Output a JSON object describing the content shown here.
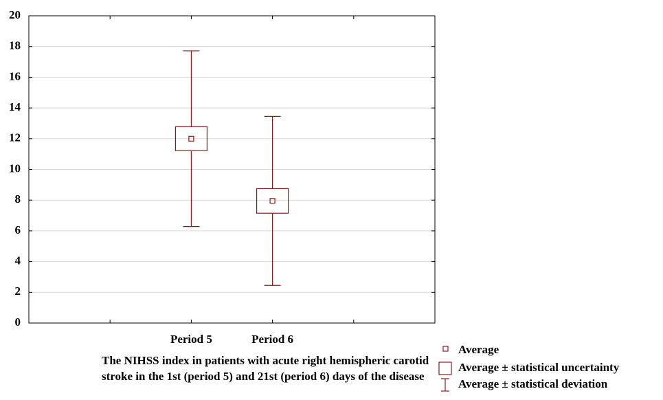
{
  "chart_data": {
    "type": "box",
    "caption": "The NIHSS index in patients with acute right hemispheric carotid stroke in the 1st (period 5) and 21st (period 6) days of the disease",
    "categories": [
      null,
      "Period 5",
      "Period 6",
      null
    ],
    "mean": [
      null,
      12,
      7.95,
      null
    ],
    "uncertainty": [
      null,
      0.78,
      0.8,
      null
    ],
    "deviation": [
      null,
      5.72,
      5.5,
      null
    ],
    "color": "#8b1a1a",
    "ylim": [
      0,
      20
    ],
    "yticks": [
      0,
      2,
      4,
      6,
      8,
      10,
      12,
      14,
      16,
      18,
      20
    ],
    "grid": true,
    "legend": [
      "Average",
      "Average ± statistical uncertainty",
      "Average ± statistical deviation"
    ]
  }
}
